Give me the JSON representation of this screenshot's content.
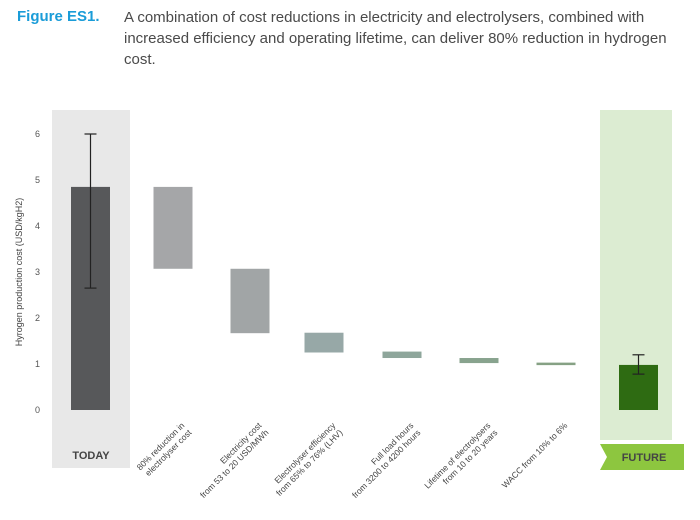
{
  "figure": {
    "label": "Figure ES1.",
    "caption": "A combination of cost reductions in electricity and electrolysers, combined with increased efficiency and operating lifetime, can deliver 80% reduction in hydrogen cost."
  },
  "colors": {
    "today_bar": "#57585a",
    "today_band": "#e8e8e8",
    "reduction_1": "#a5a6a8",
    "reduction_2": "#a1a5a6",
    "reduction_3": "#97a8a7",
    "reduction_4": "#8ea69b",
    "reduction_5": "#88a38e",
    "reduction_6": "#86a184",
    "future_bar": "#2e6b12",
    "future_band": "#dcecd2",
    "future_tag": "#8dc63f"
  },
  "chart_data": {
    "type": "bar",
    "subtype": "waterfall",
    "ylabel": "Hyrogen production cost (USD/kgH2)",
    "ylim": [
      0,
      6
    ],
    "yticks": [
      "0",
      "1",
      "2",
      "3",
      "4",
      "5",
      "6"
    ],
    "grid": false,
    "today": {
      "label": "TODAY",
      "value": 4.85,
      "error_low": 2.65,
      "error_high": 6.0
    },
    "future": {
      "label": "FUTURE",
      "value": 0.98,
      "error_low": 0.78,
      "error_high": 1.2
    },
    "steps": [
      {
        "label_lines": [
          "80% reduction in",
          "electrolyser cost"
        ],
        "from": 4.85,
        "to": 3.07
      },
      {
        "label_lines": [
          "Electricity cost",
          "from 53 to 20 USD/MWh"
        ],
        "from": 3.07,
        "to": 1.67
      },
      {
        "label_lines": [
          "Electrolyser efficiency",
          "from 65% to 76% (LHV)"
        ],
        "from": 1.68,
        "to": 1.25
      },
      {
        "label_lines": [
          "Full load hours",
          "from 3200 to 4200 hours"
        ],
        "from": 1.27,
        "to": 1.13
      },
      {
        "label_lines": [
          "Lifetime of electrolysers",
          "from 10 to 20 years"
        ],
        "from": 1.13,
        "to": 1.02
      },
      {
        "label_lines": [
          "WACC from 10% to 6%"
        ],
        "from": 1.03,
        "to": 0.98
      }
    ]
  }
}
